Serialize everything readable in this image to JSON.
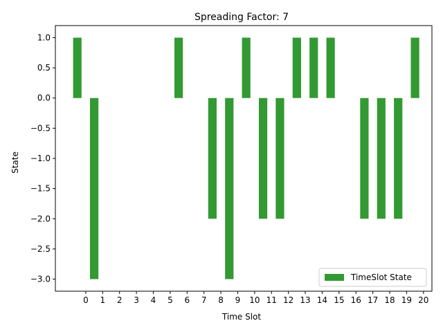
{
  "chart_data": {
    "type": "bar",
    "title": "Spreading Factor: 7",
    "xlabel": "Time Slot",
    "ylabel": "State",
    "categories": [
      "0",
      "1",
      "2",
      "3",
      "4",
      "5",
      "6",
      "7",
      "8",
      "9",
      "10",
      "11",
      "12",
      "13",
      "14",
      "15",
      "16",
      "17",
      "18",
      "19",
      "20"
    ],
    "series": [
      {
        "name": "TimeSlot State",
        "color": "#339933",
        "x": [
          -0.5,
          0.5,
          5.5,
          7.5,
          8.5,
          9.5,
          10.5,
          11.5,
          12.5,
          13.5,
          14.5,
          16.5,
          17.5,
          18.5,
          19.5
        ],
        "values": [
          1,
          -3,
          1,
          -2,
          -3,
          1,
          -2,
          -2,
          1,
          1,
          1,
          -2,
          -2,
          -2,
          1
        ]
      }
    ],
    "xlim": [
      -1.8,
      20.5
    ],
    "ylim": [
      -3.2,
      1.2
    ],
    "yticks": [
      1.0,
      0.5,
      0.0,
      -0.5,
      -1.0,
      -1.5,
      -2.0,
      -2.5,
      -3.0
    ],
    "ytick_labels": [
      "1.0",
      "0.5",
      "0.0",
      "−0.5",
      "−1.0",
      "−1.5",
      "−2.0",
      "−2.5",
      "−3.0"
    ],
    "grid": false,
    "legend": "lower-right"
  }
}
